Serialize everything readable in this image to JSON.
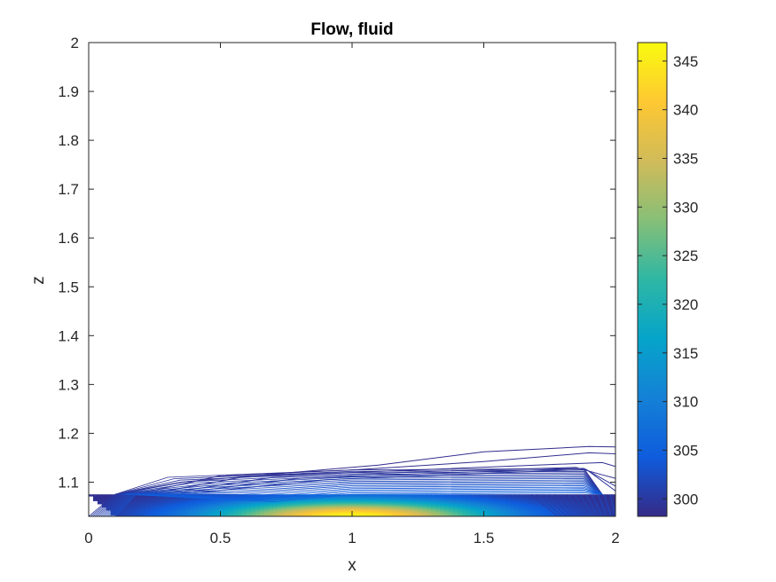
{
  "chart_data": {
    "type": "contour",
    "title": "Flow, fluid",
    "xlabel": "x",
    "ylabel": "z",
    "xlim": [
      0,
      2
    ],
    "ylim": [
      1.03,
      2
    ],
    "x_ticks": [
      "0",
      "0.5",
      "1",
      "1.5",
      "2"
    ],
    "x_tick_values": [
      0,
      0.5,
      1,
      1.5,
      2
    ],
    "y_ticks": [
      "1.1",
      "1.2",
      "1.3",
      "1.4",
      "1.5",
      "1.6",
      "1.7",
      "1.8",
      "1.9",
      "2"
    ],
    "y_tick_values": [
      1.1,
      1.2,
      1.3,
      1.4,
      1.5,
      1.6,
      1.7,
      1.8,
      1.9,
      2.0
    ],
    "colorbar": {
      "colormap": "parula",
      "range": [
        298.2,
        346.9
      ],
      "ticks": [
        "300",
        "305",
        "310",
        "315",
        "320",
        "325",
        "330",
        "335",
        "340",
        "345"
      ],
      "tick_values": [
        300,
        305,
        310,
        315,
        320,
        325,
        330,
        335,
        340,
        345
      ],
      "colors": [
        "#352a87",
        "#0f5cdd",
        "#1481d6",
        "#06a4ca",
        "#2eb7a4",
        "#87bf77",
        "#d1bb59",
        "#fec832",
        "#f9fb0e"
      ]
    },
    "field": {
      "peak_value": 346.5,
      "peak_x": 1.0,
      "peak_z": 1.03,
      "ambient_value": 298.5,
      "slab_top_z": 1.075,
      "slab_x_range": [
        0.1,
        1.9
      ]
    },
    "outer_contours": [
      {
        "value": 298.6,
        "points": [
          [
            0.1,
            1.075
          ],
          [
            0.35,
            1.1
          ],
          [
            0.95,
            1.128
          ],
          [
            1.1,
            1.135
          ],
          [
            1.5,
            1.162
          ],
          [
            1.9,
            1.173
          ],
          [
            2.0,
            1.172
          ]
        ]
      },
      {
        "value": 298.8,
        "points": [
          [
            0.2,
            1.078
          ],
          [
            0.5,
            1.113
          ],
          [
            1.0,
            1.125
          ],
          [
            1.5,
            1.142
          ],
          [
            1.9,
            1.16
          ],
          [
            2.0,
            1.158
          ]
        ]
      },
      {
        "value": 299.0,
        "points": [
          [
            0.25,
            1.078
          ],
          [
            0.6,
            1.112
          ],
          [
            1.2,
            1.124
          ],
          [
            1.7,
            1.135
          ],
          [
            1.95,
            1.14
          ],
          [
            2.0,
            1.132
          ]
        ]
      },
      {
        "value": 299.2,
        "points": [
          [
            0.3,
            1.078
          ],
          [
            0.7,
            1.11
          ],
          [
            1.3,
            1.122
          ],
          [
            1.85,
            1.13
          ],
          [
            1.95,
            1.115
          ],
          [
            2.0,
            1.108
          ]
        ]
      },
      {
        "value": 299.4,
        "points": [
          [
            0.35,
            1.078
          ],
          [
            0.8,
            1.108
          ],
          [
            1.4,
            1.12
          ],
          [
            1.88,
            1.128
          ],
          [
            2.0,
            1.092
          ]
        ]
      },
      {
        "value": 299.6,
        "points": [
          [
            0.4,
            1.078
          ],
          [
            0.9,
            1.105
          ],
          [
            1.5,
            1.118
          ],
          [
            1.89,
            1.126
          ],
          [
            2.0,
            1.082
          ]
        ]
      }
    ]
  }
}
